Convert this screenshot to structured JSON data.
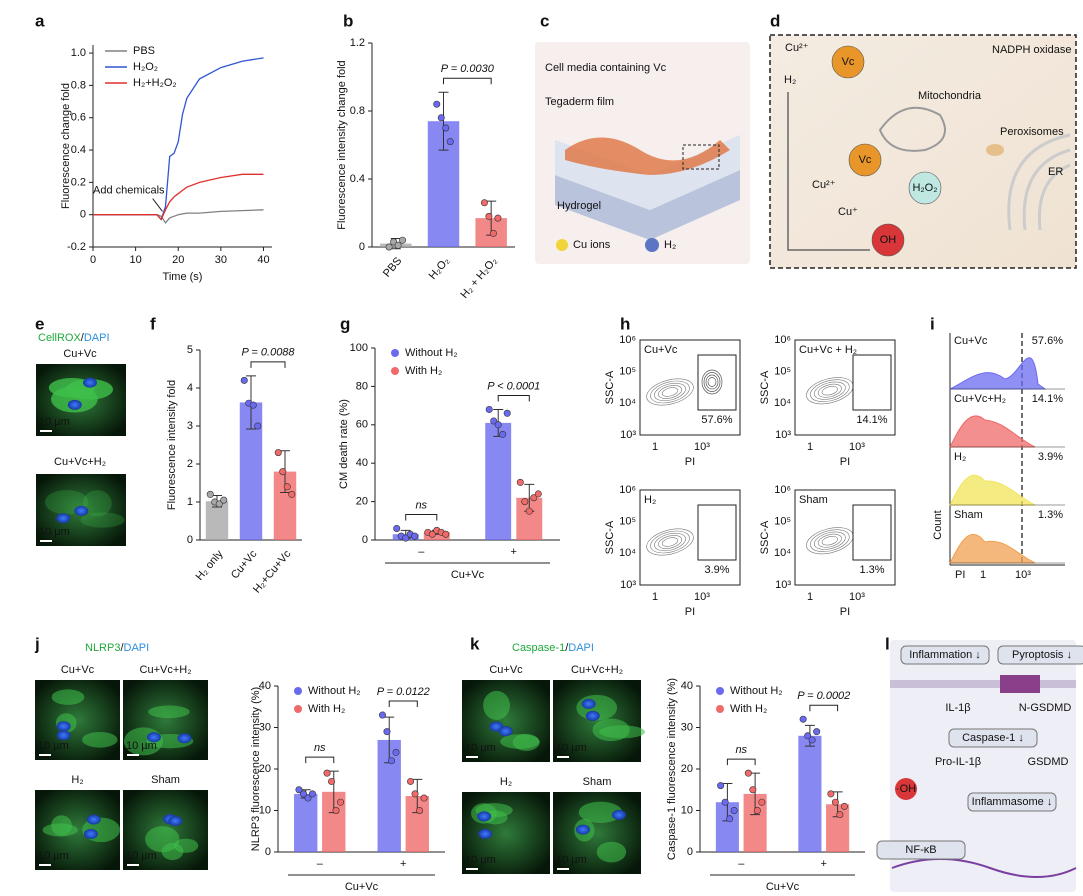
{
  "chart_data": [
    {
      "type": "line",
      "panel": "a",
      "xlabel": "Time (s)",
      "ylabel": "Fluorescence change fold",
      "x": [
        0,
        10,
        15,
        16,
        17,
        18,
        19,
        20,
        21,
        22,
        25,
        30,
        35,
        40
      ],
      "series": [
        {
          "name": "PBS",
          "color": "#808080",
          "values": [
            0,
            0,
            0,
            -0.01,
            -0.05,
            -0.02,
            -0.01,
            0,
            0.005,
            0.01,
            0.01,
            0.02,
            0.025,
            0.03
          ]
        },
        {
          "name": "H₂O₂",
          "color": "#2f55d4",
          "values": [
            0,
            0,
            0,
            -0.03,
            0.05,
            0.36,
            0.38,
            0.45,
            0.62,
            0.72,
            0.84,
            0.91,
            0.95,
            0.97
          ]
        },
        {
          "name": "H₂+H₂O₂",
          "color": "#e0302e",
          "values": [
            0,
            0,
            0,
            -0.03,
            0.03,
            0.08,
            0.11,
            0.13,
            0.15,
            0.17,
            0.2,
            0.23,
            0.25,
            0.25
          ]
        }
      ],
      "xlim": [
        0,
        42
      ],
      "xticks": [
        0,
        10,
        20,
        30,
        40
      ],
      "ylim": [
        -0.2,
        1.05
      ],
      "yticks": [
        -0.2,
        0,
        0.2,
        0.4,
        0.6,
        0.8,
        {
          "value": 1,
          "label": "1.0"
        }
      ],
      "annotation": "Add chemicals"
    },
    {
      "type": "bar",
      "panel": "b",
      "ylabel": "Fluorescence intensity change fold",
      "categories": [
        "PBS",
        "H₂O₂",
        "H₂ + H₂O₂"
      ],
      "values": [
        0.02,
        0.74,
        0.17
      ],
      "errors": [
        0.03,
        0.17,
        0.1
      ],
      "points": [
        [
          0,
          0.03,
          0.01,
          0.04
        ],
        [
          0.84,
          0.76,
          0.7,
          0.62
        ],
        [
          0.26,
          0.18,
          0.08,
          0.17
        ]
      ],
      "colors": [
        "#a8a8a8",
        "#6a6af0",
        "#f06a6a"
      ],
      "ylim": [
        0,
        1.2
      ],
      "yticks": [
        0,
        0.4,
        0.8,
        1.2
      ],
      "annotation": "P = 0.0030"
    },
    {
      "type": "bar",
      "panel": "f",
      "ylabel": "Fluorescence intensity fold",
      "categories": [
        "H₂ only",
        "Cu+Vc",
        "H₂+Cu+Vc"
      ],
      "values": [
        1.02,
        3.62,
        1.8
      ],
      "errors": [
        0.15,
        0.7,
        0.55
      ],
      "points": [
        [
          1.2,
          1,
          0.95,
          1.05
        ],
        [
          4.2,
          3.6,
          3.55,
          3
        ],
        [
          2.3,
          1.8,
          1.4,
          1.2
        ]
      ],
      "colors": [
        "#a8a8a8",
        "#6a6af0",
        "#f06a6a"
      ],
      "ylim": [
        0,
        5
      ],
      "yticks": [
        0,
        1,
        2,
        3,
        4,
        5
      ],
      "annotation": "P = 0.0088"
    },
    {
      "type": "grouped_bar",
      "panel": "g",
      "ylabel": "CM death rate (%)",
      "xlabel": "Cu+Vc",
      "categories": [
        "–",
        "+"
      ],
      "series": [
        {
          "name": "Without H₂",
          "color": "#6a6af0",
          "values": [
            3,
            61
          ],
          "errors": [
            2,
            7
          ],
          "points": [
            [
              6,
              2,
              1,
              3,
              2
            ],
            [
              68,
              62,
              60,
              55,
              66
            ]
          ]
        },
        {
          "name": "With H₂",
          "color": "#f06a6a",
          "values": [
            4,
            22
          ],
          "errors": [
            1,
            7
          ],
          "points": [
            [
              4,
              3,
              5,
              4,
              3
            ],
            [
              30,
              20,
              15,
              22,
              24
            ]
          ]
        }
      ],
      "ylim": [
        0,
        100
      ],
      "yticks": [
        0,
        20,
        40,
        60,
        80,
        100
      ],
      "annotations": [
        "ns",
        "P < 0.0001"
      ]
    },
    {
      "type": "grouped_bar",
      "ylabel": "NLRP3 fluorescence intensity (%)",
      "xlabel": "Cu+Vc",
      "categories": [
        "–",
        "+"
      ],
      "series": [
        {
          "name": "Without H₂",
          "color": "#6a6af0",
          "values": [
            14,
            27
          ],
          "errors": [
            1,
            5.5
          ],
          "points": [
            [
              15,
              14,
              13,
              14
            ],
            [
              33,
              29,
              22,
              24
            ]
          ]
        },
        {
          "name": "With H₂",
          "color": "#f06a6a",
          "values": [
            14.5,
            13.5
          ],
          "errors": [
            5,
            4
          ],
          "points": [
            [
              19,
              17,
              10,
              12
            ],
            [
              17,
              14,
              10,
              13
            ]
          ]
        }
      ],
      "ylim": [
        0,
        40
      ],
      "yticks": [
        0,
        10,
        20,
        30,
        40
      ],
      "annotations": [
        "ns",
        "P = 0.0122"
      ]
    },
    {
      "type": "grouped_bar",
      "ylabel": "Caspase-1 fluorescence intensity (%)",
      "xlabel": "Cu+Vc",
      "categories": [
        "–",
        "+"
      ],
      "series": [
        {
          "name": "Without H₂",
          "color": "#6a6af0",
          "values": [
            12,
            28
          ],
          "errors": [
            4.5,
            2.5
          ],
          "points": [
            [
              16,
              12,
              8,
              10
            ],
            [
              32,
              28,
              27,
              29
            ]
          ]
        },
        {
          "name": "With H₂",
          "color": "#f06a6a",
          "values": [
            14,
            11.5
          ],
          "errors": [
            5,
            3
          ],
          "points": [
            [
              19,
              15,
              10,
              12
            ],
            [
              14,
              12,
              9,
              11
            ]
          ]
        }
      ],
      "ylim": [
        0,
        40
      ],
      "yticks": [
        0,
        10,
        20,
        30,
        40
      ],
      "annotations": [
        "ns",
        "P = 0.0002"
      ]
    }
  ],
  "panels": {
    "c": {
      "letter": "c",
      "labels": [
        "Cell media containing Vc",
        "Tegaderm film",
        "Hydrogel"
      ],
      "legend": [
        "Cu ions",
        "H₂"
      ]
    },
    "d": {
      "letter": "d",
      "labels": [
        "Cu²⁺",
        "Vc",
        "H₂",
        "NADPH oxidase",
        "Mitochondria",
        "Peroxisomes",
        "ER",
        "Cu²⁺",
        "Vc",
        "Cu⁺",
        "H₂O₂",
        "OH"
      ]
    },
    "e": {
      "letter": "e",
      "stain": "CellROX",
      "sep": "/",
      "dapi": "DAPI",
      "images": [
        "Cu+Vc",
        "Cu+Vc+H₂"
      ],
      "scale": "10 µm"
    },
    "h": {
      "letter": "h",
      "plots": [
        {
          "label": "Cu+Vc",
          "percent": "57.6%"
        },
        {
          "label": "Cu+Vc + H₂",
          "percent": "14.1%"
        },
        {
          "label": "H₂",
          "percent": "3.9%"
        },
        {
          "label": "Sham",
          "percent": "1.3%"
        }
      ],
      "ylabel": "SSC-A",
      "xlabel": "PI",
      "yticks": [
        "10⁶",
        "10⁵",
        "10⁴",
        "10³"
      ],
      "xticks": [
        "1",
        "10³"
      ]
    },
    "i": {
      "letter": "i",
      "rows": [
        {
          "label": "Cu+Vc",
          "percent": "57.6%"
        },
        {
          "label": "Cu+Vc+H₂",
          "percent": "14.1%"
        },
        {
          "label": "H₂",
          "percent": "3.9%"
        },
        {
          "label": "Sham",
          "percent": "1.3%"
        }
      ],
      "ylabel": "Count",
      "xlabel": "PI",
      "xticks": [
        "1",
        "10³"
      ]
    },
    "j": {
      "letter": "j",
      "stain": "NLRP3",
      "sep": "/",
      "dapi": "DAPI",
      "images": [
        "Cu+Vc",
        "Cu+Vc+H₂",
        "H₂",
        "Sham"
      ],
      "scale": "10 µm"
    },
    "k": {
      "letter": "k",
      "stain": "Caspase-1",
      "sep": "/",
      "dapi": "DAPI",
      "images": [
        "Cu+Vc",
        "Cu+Vc+H₂",
        "H₂",
        "Sham"
      ],
      "scale": "10 µm"
    },
    "l": {
      "letter": "l",
      "labels": [
        "Inflammation ↓",
        "Pyroptosis ↓",
        "IL-1β",
        "N-GSDMD",
        "Caspase-1 ↓",
        "Pro-IL-1β",
        "GSDMD",
        "Inflammasome ↓",
        "NF-κB",
        "·OH"
      ]
    }
  }
}
